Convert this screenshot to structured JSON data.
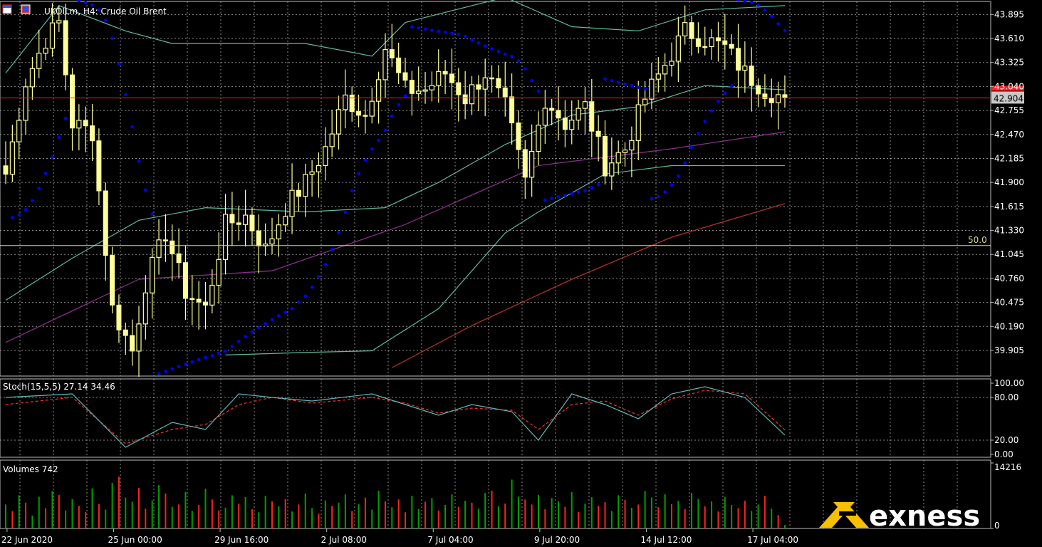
{
  "header": {
    "title": "UKOILm, H4:  Crude Oil Brent"
  },
  "colors": {
    "background": "#000000",
    "grid": "#c8c8c8",
    "candle": "#ffff99",
    "sar": "#0000ff",
    "bands": "#5fb8a0",
    "ma_purple": "#8b2f8b",
    "ma_brown": "#b03030",
    "current_price_line": "#ff2020",
    "level_line": "#d8d890",
    "stoch_main": "#5fb8b8",
    "stoch_signal": "#ff3030",
    "volume_up": "#00a000",
    "volume_down": "#ff2020",
    "brand_accent": "#f5c000"
  },
  "chart_data": [
    {
      "type": "candlestick",
      "title": "UKOILm, H4:  Crude Oil Brent",
      "price_axis": [
        "43.895",
        "43.610",
        "43.325",
        "43.040",
        "42.755",
        "42.470",
        "42.185",
        "41.900",
        "41.615",
        "41.330",
        "41.045",
        "40.760",
        "40.475",
        "40.190",
        "39.905"
      ],
      "ylim": [
        39.6,
        44.05
      ],
      "current_price": "42.904",
      "current_price_value": 42.904,
      "level_label": "50.0",
      "level_value": 41.15,
      "time_labels": [
        "22 Jun 2020",
        "25 Jun 00:00",
        "29 Jun 16:00",
        "2 Jul 08:00",
        "7 Jul 04:00",
        "9 Jul 20:00",
        "14 Jul 12:00",
        "17 Jul 04:00"
      ],
      "time_label_positions": [
        0,
        16,
        32,
        48,
        64,
        80,
        96,
        112
      ],
      "num_bars": 118,
      "anchors": [
        [
          0,
          42.0
        ],
        [
          3,
          43.1
        ],
        [
          6,
          43.6
        ],
        [
          8,
          43.8
        ],
        [
          10,
          42.6
        ],
        [
          13,
          42.5
        ],
        [
          16,
          40.4
        ],
        [
          19,
          39.9
        ],
        [
          21,
          40.7
        ],
        [
          24,
          41.3
        ],
        [
          27,
          40.6
        ],
        [
          30,
          40.4
        ],
        [
          33,
          41.4
        ],
        [
          36,
          41.5
        ],
        [
          39,
          41.1
        ],
        [
          42,
          41.6
        ],
        [
          45,
          41.9
        ],
        [
          48,
          42.3
        ],
        [
          51,
          42.9
        ],
        [
          54,
          42.7
        ],
        [
          57,
          43.5
        ],
        [
          60,
          43.0
        ],
        [
          63,
          43.0
        ],
        [
          66,
          43.2
        ],
        [
          69,
          42.9
        ],
        [
          72,
          43.2
        ],
        [
          75,
          42.8
        ],
        [
          78,
          41.9
        ],
        [
          81,
          42.9
        ],
        [
          84,
          42.6
        ],
        [
          87,
          42.8
        ],
        [
          90,
          42.1
        ],
        [
          93,
          42.3
        ],
        [
          96,
          42.9
        ],
        [
          99,
          43.3
        ],
        [
          102,
          43.7
        ],
        [
          105,
          43.6
        ],
        [
          108,
          43.5
        ],
        [
          111,
          43.2
        ],
        [
          114,
          43.0
        ],
        [
          117,
          42.9
        ]
      ],
      "moving_averages": [
        {
          "name": "MA purple",
          "points": [
            [
              0,
              40.0
            ],
            [
              20,
              40.75
            ],
            [
              40,
              40.85
            ],
            [
              60,
              41.4
            ],
            [
              80,
              42.1
            ],
            [
              100,
              42.3
            ],
            [
              117,
              42.5
            ]
          ]
        },
        {
          "name": "MA brown",
          "points": [
            [
              58,
              39.7
            ],
            [
              70,
              40.2
            ],
            [
              85,
              40.75
            ],
            [
              100,
              41.25
            ],
            [
              117,
              41.65
            ]
          ]
        }
      ],
      "bands": {
        "upper": [
          [
            0,
            43.2
          ],
          [
            8,
            44.0
          ],
          [
            18,
            43.7
          ],
          [
            25,
            43.55
          ],
          [
            45,
            43.55
          ],
          [
            55,
            43.4
          ],
          [
            60,
            43.8
          ],
          [
            75,
            44.1
          ],
          [
            85,
            43.75
          ],
          [
            95,
            43.7
          ],
          [
            105,
            43.95
          ],
          [
            117,
            44.0
          ]
        ],
        "middle": [
          [
            0,
            40.5
          ],
          [
            10,
            41.0
          ],
          [
            20,
            41.45
          ],
          [
            30,
            41.6
          ],
          [
            45,
            41.55
          ],
          [
            57,
            41.6
          ],
          [
            65,
            41.9
          ],
          [
            75,
            42.35
          ],
          [
            85,
            42.7
          ],
          [
            95,
            42.8
          ],
          [
            105,
            43.05
          ],
          [
            117,
            43.0
          ]
        ],
        "lower": [
          [
            33,
            39.85
          ],
          [
            45,
            39.88
          ],
          [
            55,
            39.9
          ],
          [
            65,
            40.4
          ],
          [
            75,
            41.3
          ],
          [
            80,
            41.55
          ],
          [
            90,
            42.0
          ],
          [
            100,
            42.1
          ],
          [
            110,
            42.1
          ],
          [
            117,
            42.1
          ]
        ]
      }
    },
    {
      "type": "line",
      "title": "Stoch(15,5,5) 27.14 34.46",
      "axis_labels": [
        "100.00",
        "80.00",
        "20.00",
        "0.00"
      ],
      "ylim": [
        0,
        100
      ],
      "series": [
        {
          "name": "",
          "values": [
            [
              0,
              80
            ],
            [
              10,
              85
            ],
            [
              18,
              10
            ],
            [
              25,
              45
            ],
            [
              30,
              35
            ],
            [
              35,
              85
            ],
            [
              40,
              80
            ],
            [
              46,
              75
            ],
            [
              55,
              85
            ],
            [
              60,
              70
            ],
            [
              65,
              55
            ],
            [
              70,
              70
            ],
            [
              76,
              60
            ],
            [
              80,
              20
            ],
            [
              85,
              85
            ],
            [
              90,
              70
            ],
            [
              95,
              50
            ],
            [
              100,
              85
            ],
            [
              105,
              95
            ],
            [
              111,
              80
            ],
            [
              117,
              27.14
            ]
          ]
        },
        {
          "name": "",
          "values": [
            [
              0,
              70
            ],
            [
              10,
              80
            ],
            [
              18,
              15
            ],
            [
              25,
              35
            ],
            [
              30,
              42
            ],
            [
              35,
              70
            ],
            [
              40,
              80
            ],
            [
              46,
              72
            ],
            [
              55,
              80
            ],
            [
              60,
              72
            ],
            [
              65,
              58
            ],
            [
              70,
              65
            ],
            [
              76,
              62
            ],
            [
              80,
              35
            ],
            [
              85,
              70
            ],
            [
              90,
              75
            ],
            [
              95,
              55
            ],
            [
              100,
              78
            ],
            [
              105,
              90
            ],
            [
              111,
              85
            ],
            [
              117,
              34.46
            ]
          ]
        }
      ]
    },
    {
      "type": "bar",
      "title": "Volumes 742",
      "axis_labels": [
        "14216",
        "0"
      ],
      "ylim": [
        0,
        14216
      ],
      "values": [
        5200,
        3800,
        7200,
        5600,
        2800,
        6900,
        4400,
        8100,
        7300,
        3900,
        6400,
        4900,
        3600,
        8700,
        5300,
        4100,
        9900,
        11200,
        6700,
        5800,
        8800,
        4300,
        6100,
        9400,
        7600,
        4700,
        5200,
        7900,
        3800,
        5100,
        8600,
        6300,
        3900,
        4500,
        7200,
        5400,
        6800,
        4200,
        3500,
        7100,
        5900,
        4800,
        6400,
        3700,
        5200,
        7600,
        4400,
        3200,
        6100,
        4900,
        5600,
        7400,
        3800,
        5300,
        6700,
        4100,
        8200,
        5900,
        4600,
        6300,
        3500,
        7100,
        4200,
        5800,
        6600,
        3900,
        5100,
        7400,
        4700,
        6000,
        5600,
        4300,
        7700,
        8200,
        4800,
        5400,
        10600,
        6900,
        6300,
        5200,
        7300,
        4200,
        6600,
        5900,
        4700,
        7900,
        3600,
        5400,
        6800,
        4900,
        5700,
        3800,
        7200,
        6200,
        4500,
        5200,
        8100,
        6700,
        4600,
        7400,
        5300,
        6000,
        4200,
        7700,
        6400,
        4800,
        5900,
        3700,
        6800,
        5100,
        4400,
        6000,
        3800,
        5200,
        7100,
        4300,
        2900,
        742
      ],
      "up": [
        true,
        false,
        true,
        false,
        true,
        true,
        false,
        true,
        false,
        true,
        true,
        false,
        false,
        true,
        false,
        true,
        true,
        false,
        true,
        true,
        false,
        false,
        true,
        true,
        false,
        true,
        false,
        true,
        true,
        false,
        true,
        false,
        false,
        true,
        true,
        false,
        true,
        false,
        true,
        true,
        false,
        true,
        false,
        true,
        false,
        true,
        true,
        false,
        true,
        false,
        true,
        true,
        false,
        true,
        false,
        true,
        true,
        false,
        true,
        false,
        false,
        true,
        true,
        false,
        true,
        false,
        true,
        true,
        false,
        true,
        false,
        true,
        true,
        false,
        true,
        false,
        true,
        true,
        false,
        false,
        true,
        false,
        true,
        true,
        false,
        true,
        false,
        true,
        true,
        false,
        false,
        true,
        true,
        false,
        true,
        false,
        true,
        true,
        false,
        true,
        false,
        true,
        false,
        true,
        true,
        false,
        true,
        false,
        true,
        true,
        false,
        false,
        true,
        true,
        false,
        true,
        false,
        true
      ]
    }
  ],
  "brand": {
    "name": "exness"
  }
}
